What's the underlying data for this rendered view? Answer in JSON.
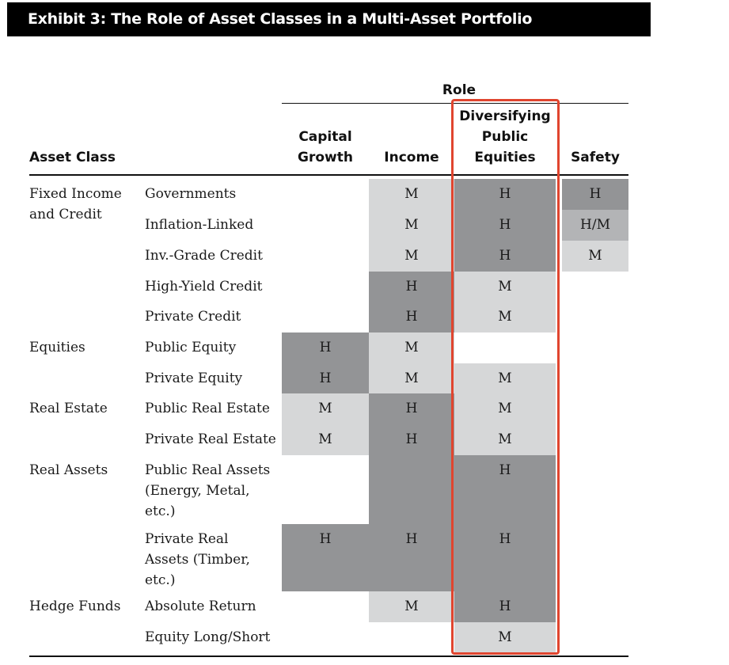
{
  "exhibit": {
    "title": "Exhibit 3: The Role of Asset Classes in a Multi-Asset Portfolio"
  },
  "table": {
    "role_header": "Role",
    "asset_class_header": "Asset Class",
    "columns": [
      "Capital\nGrowth",
      "Income",
      "Diversifying\nPublic\nEquities",
      "Safety"
    ],
    "groups": [
      "Fixed Income\nand Credit",
      "Equities",
      "Real Estate",
      "Real Assets",
      "Hedge Funds"
    ],
    "rows": [
      {
        "label": "Governments",
        "cells": [
          "",
          "M",
          "H",
          "H"
        ]
      },
      {
        "label": "Inflation-Linked",
        "cells": [
          "",
          "M",
          "H",
          "H/M"
        ]
      },
      {
        "label": "Inv.-Grade Credit",
        "cells": [
          "",
          "M",
          "H",
          "M"
        ]
      },
      {
        "label": "High-Yield Credit",
        "cells": [
          "",
          "H",
          "M",
          ""
        ]
      },
      {
        "label": "Private Credit",
        "cells": [
          "",
          "H",
          "M",
          ""
        ]
      },
      {
        "label": "Public Equity",
        "cells": [
          "H",
          "M",
          "",
          ""
        ]
      },
      {
        "label": "Private Equity",
        "cells": [
          "H",
          "M",
          "M",
          ""
        ]
      },
      {
        "label": "Public Real Estate",
        "cells": [
          "M",
          "H",
          "M",
          ""
        ]
      },
      {
        "label": "Private Real Estate",
        "cells": [
          "M",
          "H",
          "M",
          ""
        ]
      },
      {
        "label": "Public Real Assets\n(Energy, Metal,\netc.)",
        "cells": [
          "",
          "",
          "H",
          ""
        ]
      },
      {
        "label": "Private Real\nAssets (Timber,\netc.)",
        "cells": [
          "H",
          "H",
          "H",
          ""
        ]
      },
      {
        "label": "Absolute Return",
        "cells": [
          "",
          "M",
          "H",
          ""
        ]
      },
      {
        "label": "Equity Long/Short",
        "cells": [
          "",
          "",
          "M",
          ""
        ]
      }
    ]
  },
  "colors": {
    "high": "#939496",
    "medium_high": "#b3b4b6",
    "medium": "#d6d7d8",
    "highlight_border": "#e0452f"
  }
}
